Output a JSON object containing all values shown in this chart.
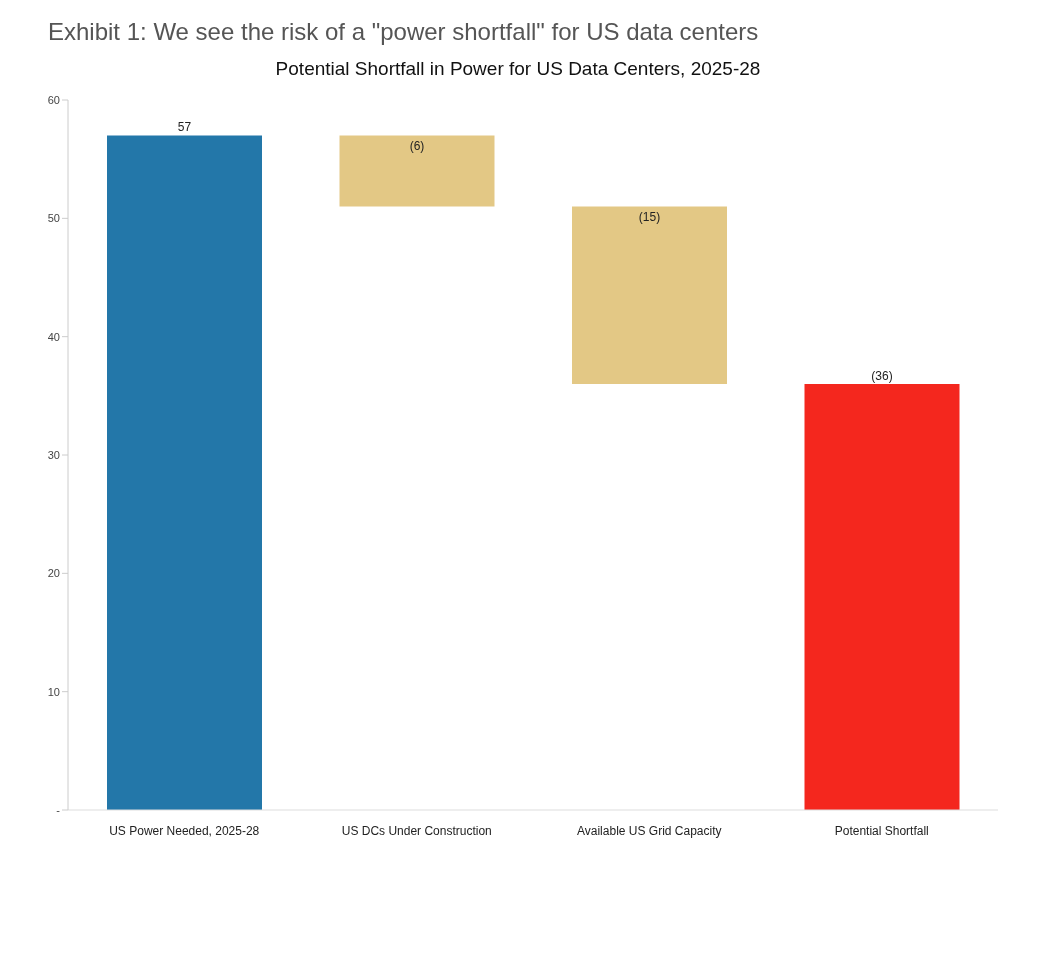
{
  "chart_data": {
    "type": "bar",
    "title": "Exhibit 1:    We see the risk of a \"power shortfall\" for US data centers",
    "subtitle": "Potential Shortfall in Power for US Data Centers, 2025-28",
    "categories": [
      "US Power Needed, 2025-28",
      "US DCs Under Construction",
      "Available US Grid Capacity",
      "Potential Shortfall"
    ],
    "values": [
      57,
      -6,
      -15,
      -36
    ],
    "base": [
      0,
      57,
      51,
      36
    ],
    "colors": [
      "#2377a9",
      "#e3c885",
      "#e3c885",
      "#f4271e"
    ],
    "value_labels": [
      "57",
      "(6)",
      "(15)",
      "(36)"
    ],
    "ylim": [
      0,
      60
    ],
    "yticks": [
      {
        "value": 0,
        "label": "-"
      },
      10,
      20,
      30,
      40,
      50,
      60
    ],
    "grid": false,
    "legend": false
  }
}
